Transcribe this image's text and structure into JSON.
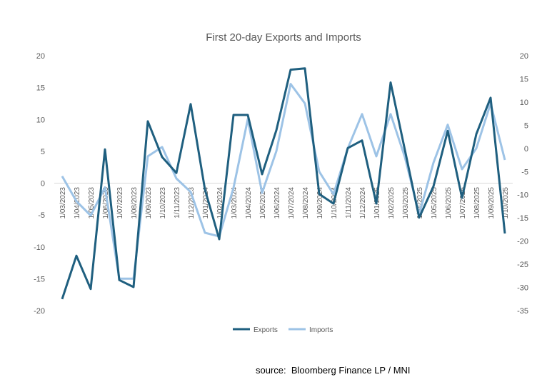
{
  "chart_data": {
    "type": "line",
    "title": "First 20-day Exports and Imports",
    "categories": [
      "1/03/2023",
      "1/04/2023",
      "1/05/2023",
      "1/06/2023",
      "1/07/2023",
      "1/08/2023",
      "1/09/2023",
      "1/10/2023",
      "1/11/2023",
      "1/12/2023",
      "1/01/2024",
      "1/02/2024",
      "1/03/2024",
      "1/04/2024",
      "1/05/2024",
      "1/06/2024",
      "1/07/2024",
      "1/08/2024",
      "1/09/2024",
      "1/10/2024",
      "1/11/2024",
      "1/12/2024",
      "1/01/2025",
      "1/02/2025",
      "1/03/2025",
      "1/04/2025",
      "1/05/2025",
      "1/06/2025",
      "1/07/2025",
      "1/08/2025",
      "1/09/2025",
      "1/10/2025"
    ],
    "series": [
      {
        "name": "Exports",
        "axis": "left",
        "color": "#1f5f7f",
        "values": [
          -18.2,
          -11.4,
          -16.6,
          5.3,
          -15.2,
          -16.3,
          9.7,
          4.1,
          1.6,
          12.4,
          -1.0,
          -8.8,
          10.7,
          10.7,
          1.4,
          8.3,
          17.8,
          18.0,
          -1.7,
          -3.2,
          5.5,
          6.7,
          -3.2,
          15.8,
          5.2,
          -5.4,
          -0.5,
          8.2,
          -2.3,
          7.7,
          13.4,
          -7.9
        ]
      },
      {
        "name": "Imports",
        "axis": "right",
        "color": "#9dc3e6",
        "values": [
          -6.0,
          -11.4,
          -14.5,
          -8.4,
          -28.1,
          -28.1,
          -1.7,
          0.3,
          -6.5,
          -9.4,
          -18.2,
          -19.0,
          -8.5,
          6.3,
          -9.6,
          -0.6,
          13.9,
          9.7,
          -5.0,
          -9.9,
          0.0,
          7.4,
          -1.7,
          7.4,
          -1.9,
          -14.2,
          -3.1,
          5.1,
          -4.5,
          0.0,
          9.7,
          -2.5
        ]
      }
    ],
    "left_axis": {
      "ylim": [
        -20,
        20
      ],
      "ticks": [
        20,
        15,
        10,
        5,
        0,
        -5,
        -10,
        -15,
        -20
      ]
    },
    "right_axis": {
      "ylim": [
        -35,
        20
      ],
      "ticks": [
        20,
        15,
        10,
        5,
        0,
        -5,
        -10,
        -15,
        -20,
        -25,
        -30,
        -35
      ]
    },
    "xlabel": "",
    "ylabel": "",
    "grid": false,
    "legend": "bottom"
  },
  "source": "source:  Bloomberg Finance LP / MNI"
}
